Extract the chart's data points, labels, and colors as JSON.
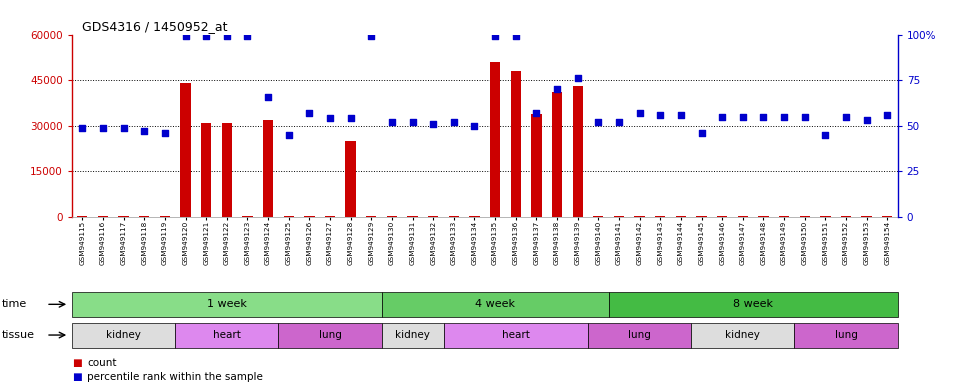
{
  "title": "GDS4316 / 1450952_at",
  "samples": [
    "GSM949115",
    "GSM949116",
    "GSM949117",
    "GSM949118",
    "GSM949119",
    "GSM949120",
    "GSM949121",
    "GSM949122",
    "GSM949123",
    "GSM949124",
    "GSM949125",
    "GSM949126",
    "GSM949127",
    "GSM949128",
    "GSM949129",
    "GSM949130",
    "GSM949131",
    "GSM949132",
    "GSM949133",
    "GSM949134",
    "GSM949135",
    "GSM949136",
    "GSM949137",
    "GSM949138",
    "GSM949139",
    "GSM949140",
    "GSM949141",
    "GSM949142",
    "GSM949143",
    "GSM949144",
    "GSM949145",
    "GSM949146",
    "GSM949147",
    "GSM949148",
    "GSM949149",
    "GSM949150",
    "GSM949151",
    "GSM949152",
    "GSM949153",
    "GSM949154"
  ],
  "counts": [
    200,
    200,
    200,
    200,
    200,
    44000,
    31000,
    31000,
    200,
    32000,
    200,
    200,
    200,
    25000,
    200,
    200,
    200,
    200,
    200,
    200,
    51000,
    48000,
    34000,
    41000,
    43000,
    200,
    200,
    200,
    200,
    200,
    200,
    200,
    200,
    200,
    200,
    200,
    200,
    200,
    200,
    200
  ],
  "percentile": [
    49,
    49,
    49,
    47,
    46,
    99,
    99,
    99,
    99,
    66,
    45,
    57,
    54,
    54,
    99,
    52,
    52,
    51,
    52,
    50,
    99,
    99,
    57,
    70,
    76,
    52,
    52,
    57,
    56,
    56,
    46,
    55,
    55,
    55,
    55,
    55,
    45,
    55,
    53,
    56
  ],
  "bar_color": "#cc0000",
  "dot_color": "#0000cc",
  "bg_color": "#ffffff",
  "left_color": "#cc0000",
  "right_color": "#0000cc",
  "yticks_left": [
    0,
    15000,
    30000,
    45000,
    60000
  ],
  "yticks_right": [
    0,
    25,
    50,
    75,
    100
  ],
  "time_groups": [
    {
      "label": "1 week",
      "start": 0,
      "end": 15,
      "color": "#88dd88"
    },
    {
      "label": "4 week",
      "start": 15,
      "end": 26,
      "color": "#66cc66"
    },
    {
      "label": "8 week",
      "start": 26,
      "end": 40,
      "color": "#44bb44"
    }
  ],
  "tissue_groups": [
    {
      "label": "kidney",
      "start": 0,
      "end": 5,
      "color": "#dddddd"
    },
    {
      "label": "heart",
      "start": 5,
      "end": 10,
      "color": "#dd88ee"
    },
    {
      "label": "lung",
      "start": 10,
      "end": 15,
      "color": "#cc66cc"
    },
    {
      "label": "kidney",
      "start": 15,
      "end": 18,
      "color": "#dddddd"
    },
    {
      "label": "heart",
      "start": 18,
      "end": 25,
      "color": "#dd88ee"
    },
    {
      "label": "lung",
      "start": 25,
      "end": 30,
      "color": "#cc66cc"
    },
    {
      "label": "kidney",
      "start": 30,
      "end": 35,
      "color": "#dddddd"
    },
    {
      "label": "lung",
      "start": 35,
      "end": 40,
      "color": "#cc66cc"
    }
  ]
}
